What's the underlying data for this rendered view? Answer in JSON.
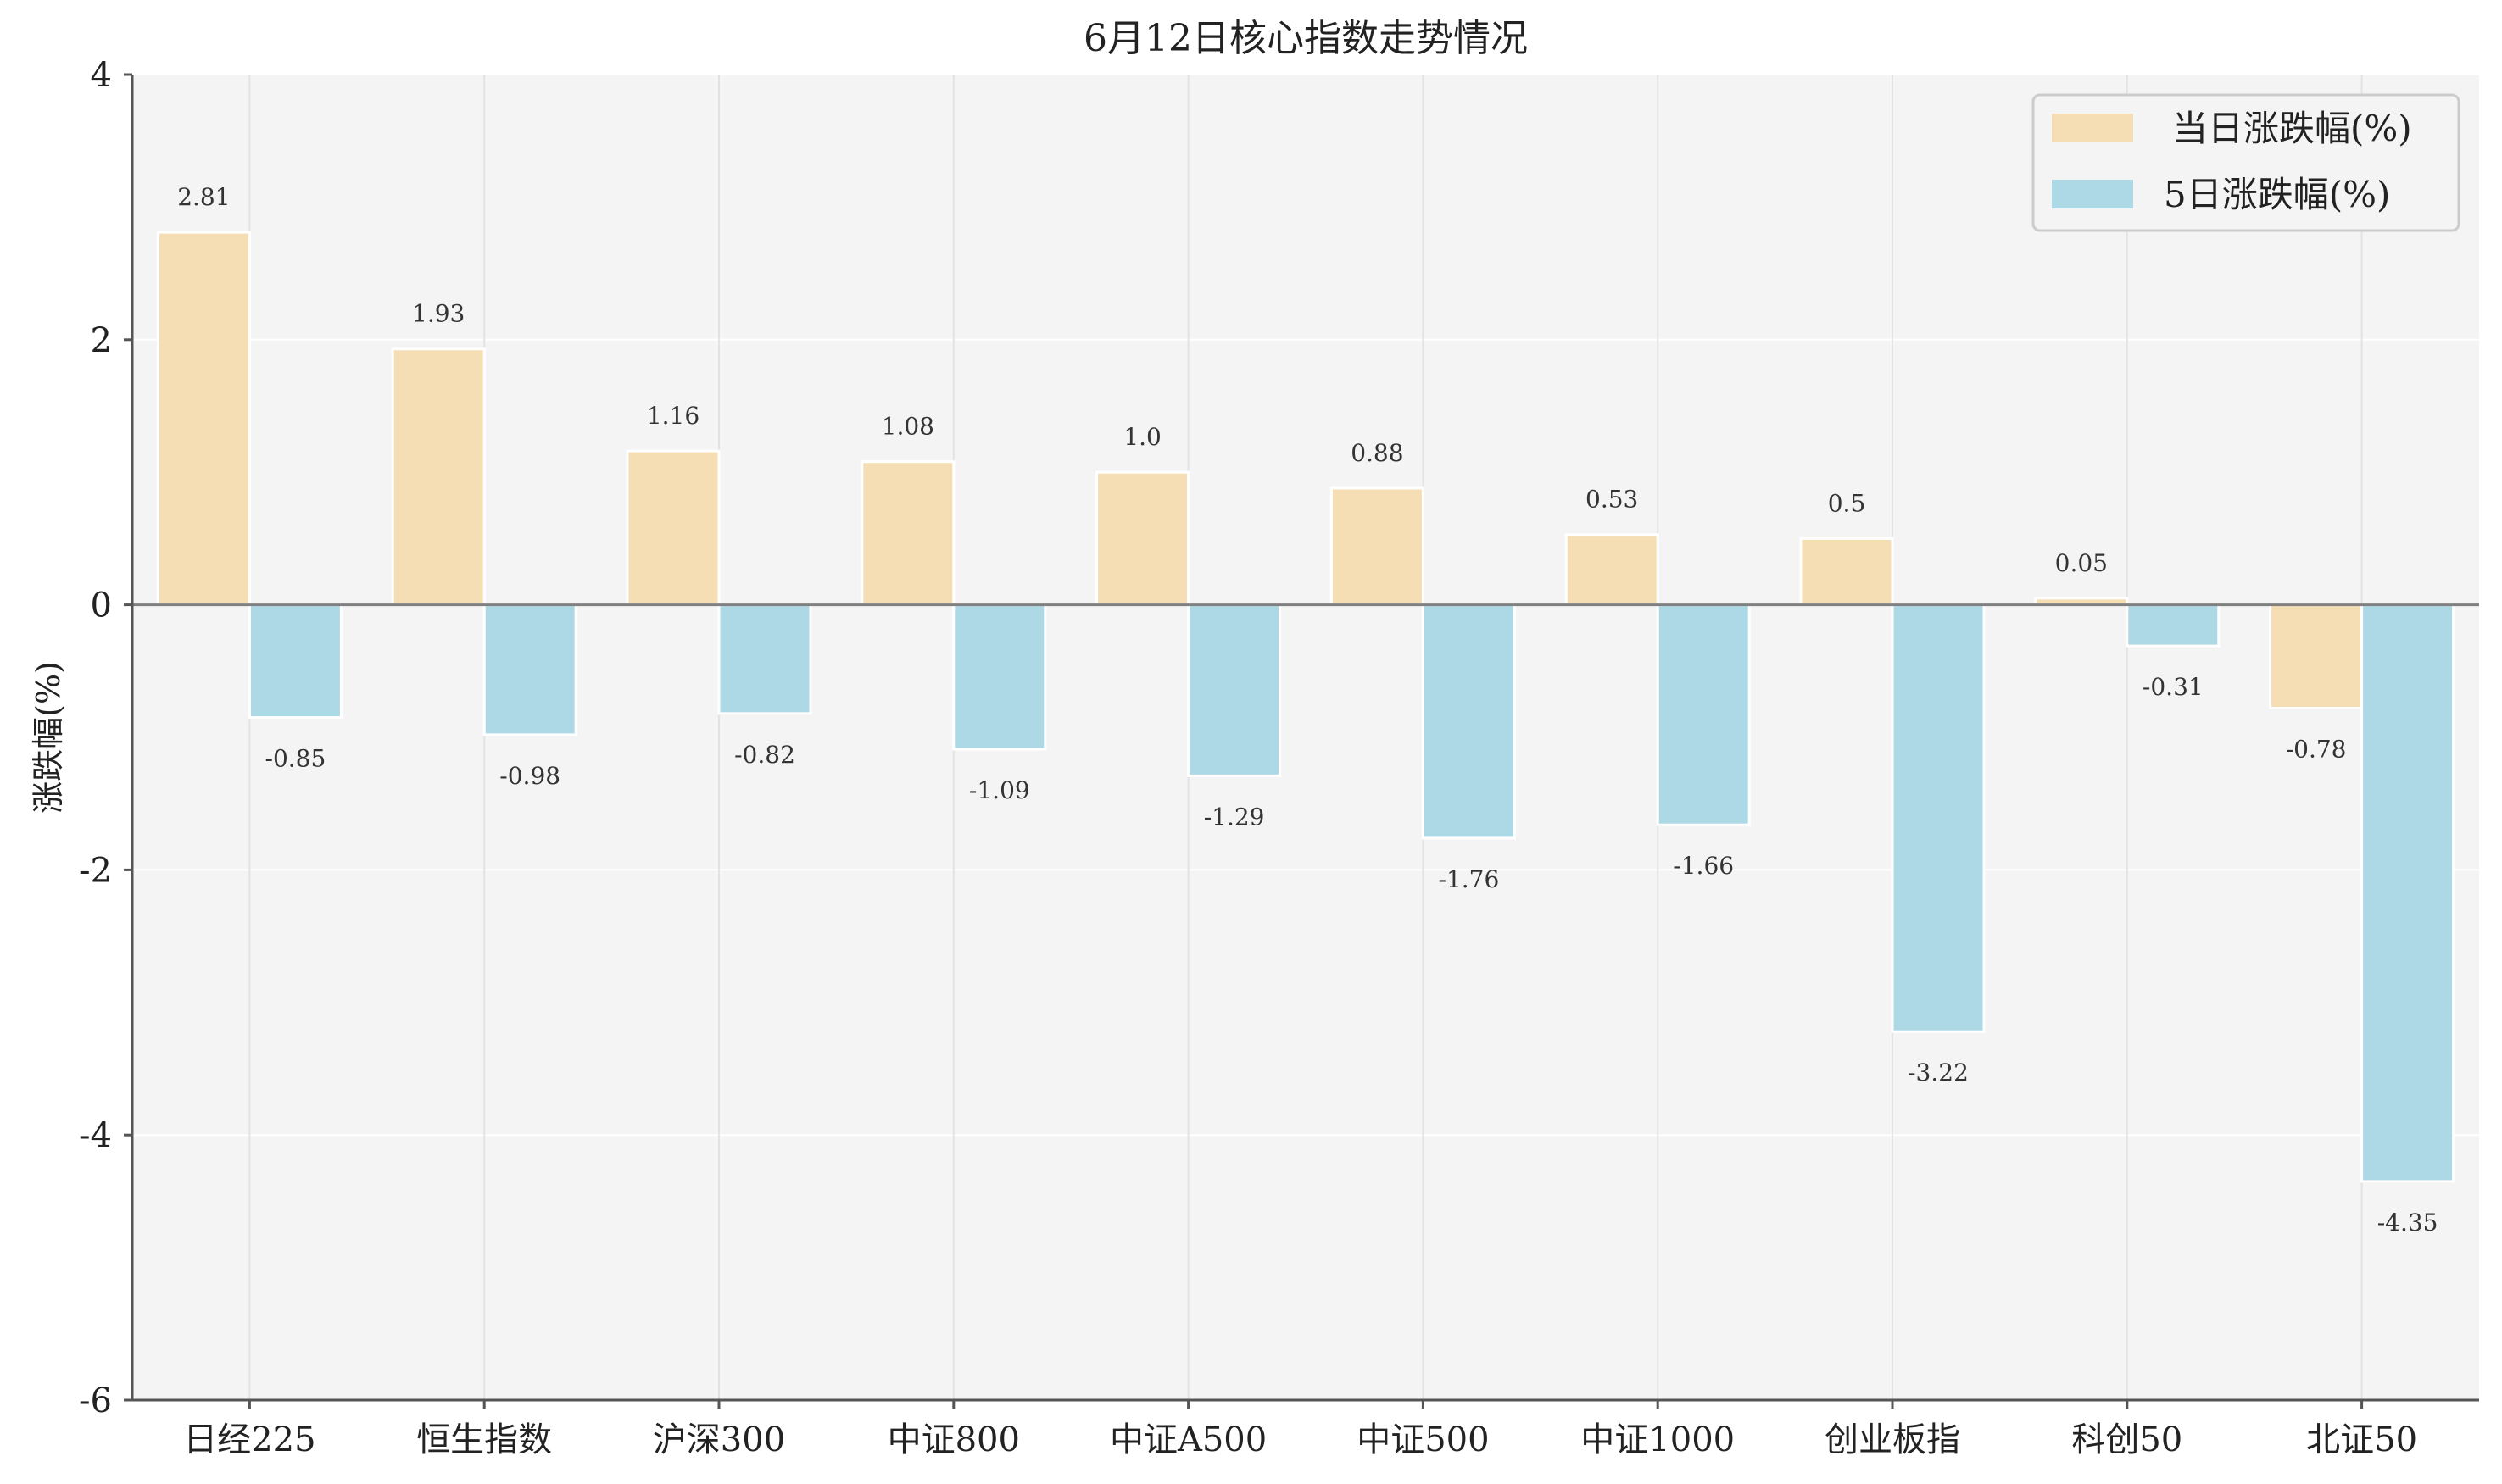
{
  "chart_data": {
    "type": "bar",
    "title": "6月12日核心指数走势情况",
    "ylabel": "涨跌幅(%)",
    "xlabel": "",
    "ylim": [
      -6,
      4
    ],
    "yticks": [
      4,
      2,
      0,
      -2,
      -4,
      -6
    ],
    "grid": true,
    "legend_position": "top-right",
    "categories": [
      "日经225",
      "恒生指数",
      "沪深300",
      "中证800",
      "中证A500",
      "中证500",
      "中证1000",
      "创业板指",
      "科创50",
      "北证50"
    ],
    "series": [
      {
        "name": "当日涨跌幅(%)",
        "color": "#F5DEB3",
        "values": [
          2.81,
          1.93,
          1.16,
          1.08,
          1.0,
          0.88,
          0.53,
          0.5,
          0.05,
          -0.78
        ],
        "labels": [
          "2.81",
          "1.93",
          "1.16",
          "1.08",
          "1.0",
          "0.88",
          "0.53",
          "0.5",
          "0.05",
          "-0.78"
        ]
      },
      {
        "name": "5日涨跌幅(%)",
        "color": "#ADD8E6",
        "values": [
          -0.85,
          -0.98,
          -0.82,
          -1.09,
          -1.29,
          -1.76,
          -1.66,
          -3.22,
          -0.31,
          -4.35
        ],
        "labels": [
          "-0.85",
          "-0.98",
          "-0.82",
          "-1.09",
          "-1.29",
          "-1.76",
          "-1.66",
          "-3.22",
          "-0.31",
          "-4.35"
        ]
      }
    ]
  }
}
